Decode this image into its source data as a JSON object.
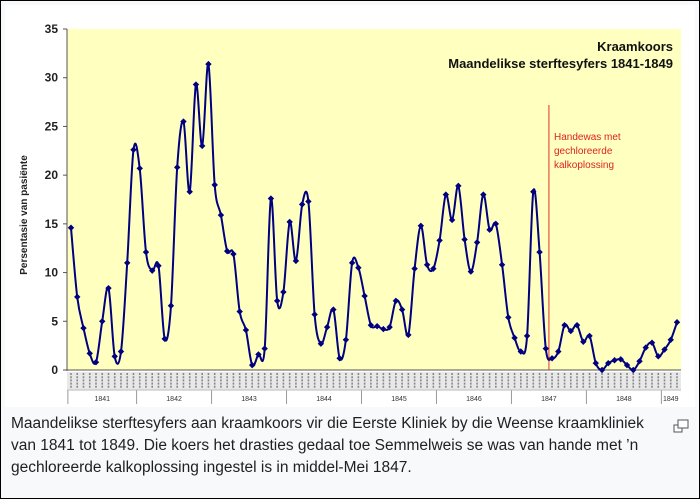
{
  "chart_data": {
    "type": "line",
    "title": "Kraamkoors",
    "subtitle": "Maandelikse sterftesyfers 1841-1849",
    "ylabel": "Persentasie van pasiënte",
    "ylim": [
      0,
      35
    ],
    "yticks": [
      "0",
      "5",
      "10",
      "15",
      "20",
      "25",
      "30",
      "35"
    ],
    "year_labels": [
      "1841",
      "1842",
      "1843",
      "1844",
      "1845",
      "1846",
      "1847",
      "1848",
      "1849"
    ],
    "grid": false,
    "line_color": "#000080",
    "annotation": {
      "text": [
        "Handewas met",
        "gechloreerde",
        "kalkoplossing"
      ],
      "color": "#e03030",
      "month_index": 76.5
    },
    "series": [
      {
        "values": [
          14.6,
          7.5,
          4.3,
          1.7,
          0.8,
          5.0,
          8.4,
          1.4,
          1.9,
          11.0,
          22.6,
          20.7,
          12.1,
          10.2,
          10.7,
          3.2,
          6.6,
          20.8,
          25.5,
          18.3,
          29.3,
          23.0,
          31.4,
          19.0,
          15.9,
          12.2,
          11.9,
          6.0,
          4.1,
          0.5,
          1.6,
          2.2,
          17.6,
          7.1,
          8.0,
          15.2,
          11.2,
          17.0,
          17.3,
          5.7,
          2.7,
          4.4,
          6.2,
          1.2,
          3.1,
          11.0,
          10.5,
          7.6,
          4.6,
          4.5,
          4.2,
          4.4,
          7.1,
          6.2,
          3.6,
          10.4,
          14.8,
          10.8,
          10.4,
          13.3,
          18.0,
          15.4,
          18.9,
          13.4,
          10.1,
          13.1,
          18.0,
          14.4,
          15.0,
          10.8,
          5.4,
          3.3,
          1.9,
          3.5,
          18.3,
          12.1,
          2.2,
          1.2,
          1.9,
          4.6,
          4.0,
          4.6,
          2.9,
          3.5,
          0.7,
          0.0,
          0.7,
          1.0,
          1.1,
          0.5,
          0.0,
          0.9,
          2.3,
          2.8,
          1.4,
          2.1,
          3.1,
          4.9
        ]
      }
    ]
  },
  "caption": "Maandelikse sterftesyfers aan kraamkoors vir die Eerste Kliniek by die Weense kraamkliniek van 1841 tot 1849. Die koers het drasties gedaal toe Semmelweis se was van hande met ’n gechloreerde kalkoplossing ingestel is in middel-Mei 1847.",
  "enlarge_icon": "magnify-icon"
}
